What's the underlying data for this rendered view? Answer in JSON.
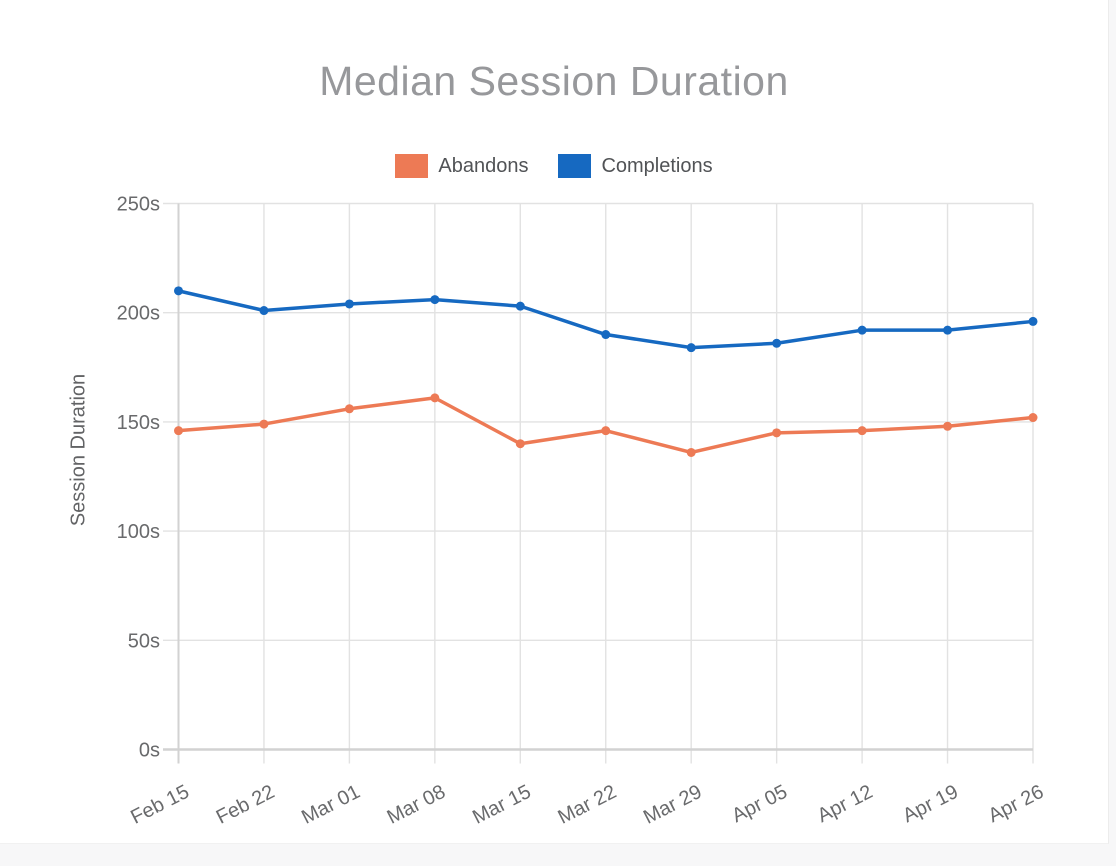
{
  "page": {
    "background_color": "#f7f7f8",
    "card_color": "#ffffff"
  },
  "chart_data": {
    "type": "line",
    "title": "Median Session Duration",
    "xlabel": "",
    "ylabel": "Session Duration",
    "categories": [
      "Feb 15",
      "Feb 22",
      "Mar 01",
      "Mar 08",
      "Mar 15",
      "Mar 22",
      "Mar 29",
      "Apr 05",
      "Apr 12",
      "Apr 19",
      "Apr 26"
    ],
    "series": [
      {
        "name": "Abandons",
        "color": "#ED7A55",
        "values": [
          146,
          149,
          156,
          161,
          140,
          146,
          136,
          145,
          146,
          148,
          152
        ]
      },
      {
        "name": "Completions",
        "color": "#1669C1",
        "values": [
          210,
          201,
          204,
          206,
          203,
          190,
          184,
          186,
          192,
          192,
          196
        ]
      }
    ],
    "ylim": [
      0,
      250
    ],
    "yticks": [
      0,
      50,
      100,
      150,
      200,
      250
    ],
    "ytick_suffix": "s",
    "grid": true,
    "legend_position": "top",
    "x_label_rotation_deg": -27,
    "style": {
      "title_color": "#97989b",
      "tick_label_color": "#696a6c",
      "legend_label_color": "#515356",
      "gridline_color": "#e2e2e2",
      "axis_color": "#d2d2d2"
    }
  }
}
